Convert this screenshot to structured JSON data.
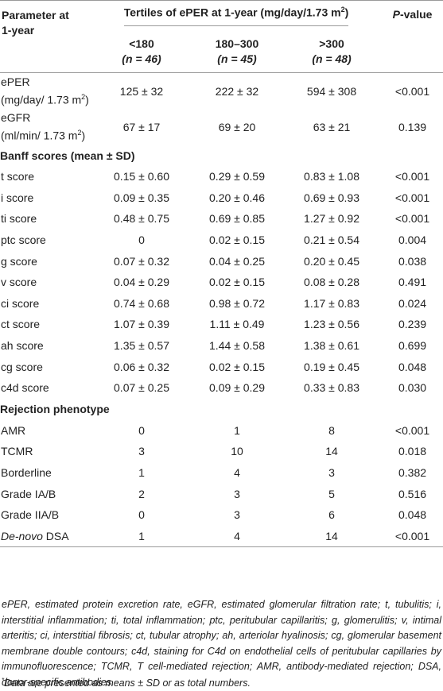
{
  "header": {
    "param_col_line1": "Parameter at",
    "param_col_line2": "1-year",
    "tertiles_title": "Tertiles of ePER at 1-year (mg/day/1.73 m",
    "tertiles_title_sup": "2",
    "tertiles_title_end": ")",
    "pvalue_italic": "P",
    "pvalue_rest": "-value",
    "tertiles": [
      {
        "range": "<180",
        "n_label": "(n = 46)"
      },
      {
        "range": "180–300",
        "n_label": "(n = 45)"
      },
      {
        "range": ">300",
        "n_label": "(n = 48)"
      }
    ]
  },
  "top_rows": [
    {
      "label_line1": "ePER",
      "label_line2": "(mg/day/ 1.73 m",
      "label_sup": "2",
      "label_end": ")",
      "values": [
        "125 ± 32",
        "222 ± 32",
        "594 ± 308"
      ],
      "p": "<0.001"
    },
    {
      "label_line1": "eGFR",
      "label_line2": "(ml/min/ 1.73 m",
      "label_sup": "2",
      "label_end": ")",
      "values": [
        "67 ± 17",
        "69 ± 20",
        "63 ± 21"
      ],
      "p": "0.139"
    }
  ],
  "sections": [
    {
      "title": "Banff scores (mean ± SD)",
      "rows": [
        {
          "label": "t score",
          "values": [
            "0.15 ± 0.60",
            "0.29 ± 0.59",
            "0.83 ± 1.08"
          ],
          "p": "<0.001"
        },
        {
          "label": "i score",
          "values": [
            "0.09 ± 0.35",
            "0.20 ± 0.46",
            "0.69 ± 0.93"
          ],
          "p": "<0.001"
        },
        {
          "label": "ti score",
          "values": [
            "0.48 ± 0.75",
            "0.69 ± 0.85",
            "1.27 ± 0.92"
          ],
          "p": "<0.001"
        },
        {
          "label": "ptc score",
          "values": [
            "0",
            "0.02 ± 0.15",
            "0.21 ± 0.54"
          ],
          "p": "0.004"
        },
        {
          "label": "g score",
          "values": [
            "0.07 ± 0.32",
            "0.04 ± 0.25",
            "0.20 ± 0.45"
          ],
          "p": "0.038"
        },
        {
          "label": "v score",
          "values": [
            "0.04 ± 0.29",
            "0.02 ± 0.15",
            "0.08 ± 0.28"
          ],
          "p": "0.491"
        },
        {
          "label": "ci score",
          "values": [
            "0.74 ± 0.68",
            "0.98 ± 0.72",
            "1.17 ± 0.83"
          ],
          "p": "0.024"
        },
        {
          "label": "ct score",
          "values": [
            "1.07 ± 0.39",
            "1.11 ± 0.49",
            "1.23 ± 0.56"
          ],
          "p": "0.239"
        },
        {
          "label": "ah score",
          "values": [
            "1.35 ± 0.57",
            "1.44 ± 0.58",
            "1.38 ± 0.61"
          ],
          "p": "0.699"
        },
        {
          "label": "cg score",
          "values": [
            "0.06 ± 0.32",
            "0.02 ± 0.15",
            "0.19 ± 0.45"
          ],
          "p": "0.048"
        },
        {
          "label": "c4d score",
          "values": [
            "0.07 ± 0.25",
            "0.09 ± 0.29",
            "0.33 ± 0.83"
          ],
          "p": "0.030"
        }
      ]
    },
    {
      "title": "Rejection phenotype",
      "rows": [
        {
          "label": "AMR",
          "values": [
            "0",
            "1",
            "8"
          ],
          "p": "<0.001"
        },
        {
          "label": "TCMR",
          "values": [
            "3",
            "10",
            "14"
          ],
          "p": "0.018"
        },
        {
          "label": "Borderline",
          "values": [
            "1",
            "4",
            "3"
          ],
          "p": "0.382"
        },
        {
          "label": "Grade IA/B",
          "values": [
            "2",
            "3",
            "5"
          ],
          "p": "0.516"
        },
        {
          "label": "Grade IIA/B",
          "values": [
            "0",
            "3",
            "6"
          ],
          "p": "0.048"
        }
      ]
    }
  ],
  "last_row": {
    "label_italic": "De-novo",
    "label_rest": " DSA",
    "values": [
      "1",
      "4",
      "14"
    ],
    "p": "<0.001"
  },
  "footnote": "ePER, estimated protein excretion rate, eGFR, estimated glomerular filtration rate; t, tubulitis; i, interstitial inflammation; ti, total inflammation; ptc, peritubular capillaritis; g, glomerulitis; v, intimal arteritis; ci, interstitial fibrosis; ct, tubular atrophy; ah, arteriolar hyalinosis; cg, glomerular basement membrane double contours; c4d, staining for C4d on endothelial cells of peritubular capillaries by immunofluorescence; TCMR, T cell-mediated rejection; AMR, antibody-mediated rejection; DSA, donor-specific antibodies.",
  "footnote2_marker": "*",
  "footnote2": "Data are presented as means ± SD or as total numbers."
}
